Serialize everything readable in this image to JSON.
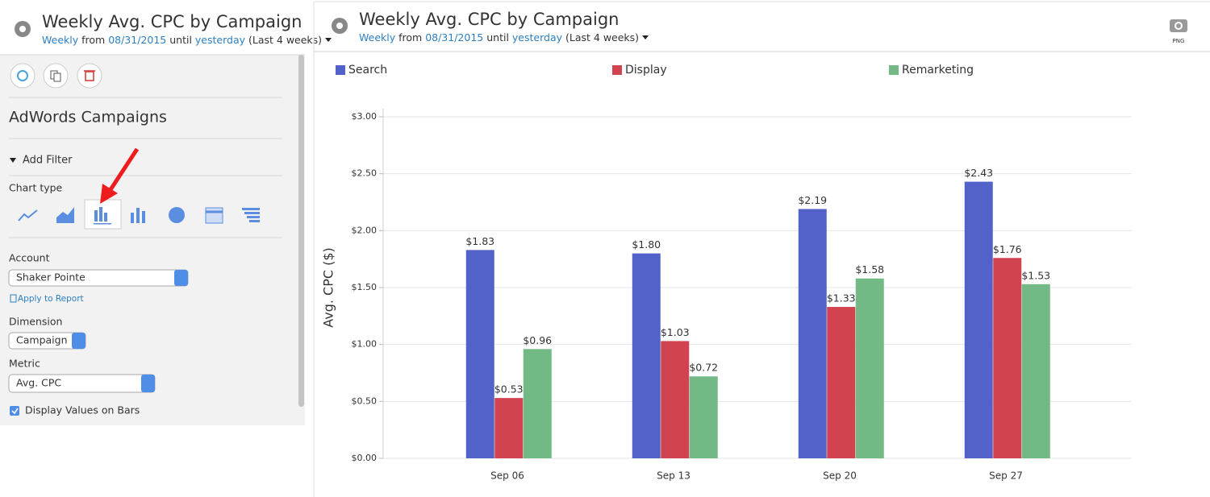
{
  "sidebar": {
    "title": "Weekly Avg. CPC by Campaign",
    "subtitle": {
      "period": "Weekly",
      "from": "from",
      "start": "08/31/2015",
      "until": "until",
      "end": "yesterday",
      "range": "(Last 4 weeks)"
    },
    "section": "AdWords Campaigns",
    "add_filter": "Add Filter",
    "chart_type_label": "Chart type",
    "account": {
      "label": "Account",
      "value": "Shaker Pointe",
      "apply": "Apply to Report"
    },
    "dimension": {
      "label": "Dimension",
      "value": "Campaign"
    },
    "metric": {
      "label": "Metric",
      "value": "Avg. CPC"
    },
    "display_values": "Display Values on Bars"
  },
  "panel": {
    "title": "Weekly Avg. CPC by Campaign",
    "subtitle": {
      "period": "Weekly",
      "from": "from",
      "start": "08/31/2015",
      "until": "until",
      "end": "yesterday",
      "range": "(Last 4 weeks)"
    },
    "export": "PNG"
  },
  "chart_data": {
    "type": "bar",
    "y_label": "Avg. CPC ($)",
    "categories": [
      "Sep 06",
      "Sep 13",
      "Sep 20",
      "Sep 27"
    ],
    "series": [
      {
        "name": "Search",
        "color": "#5362c9",
        "values": [
          1.83,
          1.8,
          2.19,
          2.43
        ],
        "value_labels": [
          "$1.83",
          "$1.80",
          "$2.19",
          "$2.43"
        ]
      },
      {
        "name": "Display",
        "color": "#d1434f",
        "values": [
          0.53,
          1.03,
          1.33,
          1.76
        ],
        "value_labels": [
          "$0.53",
          "$1.03",
          "$1.33",
          "$1.76"
        ]
      },
      {
        "name": "Remarketing",
        "color": "#72b986",
        "values": [
          0.96,
          0.72,
          1.58,
          1.53
        ],
        "value_labels": [
          "$0.96",
          "$0.72",
          "$1.58",
          "$1.53"
        ]
      }
    ],
    "ylim": [
      0,
      3
    ],
    "yticks": [
      {
        "value": 0,
        "label": "$0.00"
      },
      {
        "value": 0.5,
        "label": "$0.50"
      },
      {
        "value": 1,
        "label": "$1.00"
      },
      {
        "value": 1.5,
        "label": "$1.50"
      },
      {
        "value": 2,
        "label": "$2.00"
      },
      {
        "value": 2.5,
        "label": "$2.50"
      },
      {
        "value": 3,
        "label": "$3.00"
      }
    ],
    "grid": true,
    "legend": "top"
  }
}
